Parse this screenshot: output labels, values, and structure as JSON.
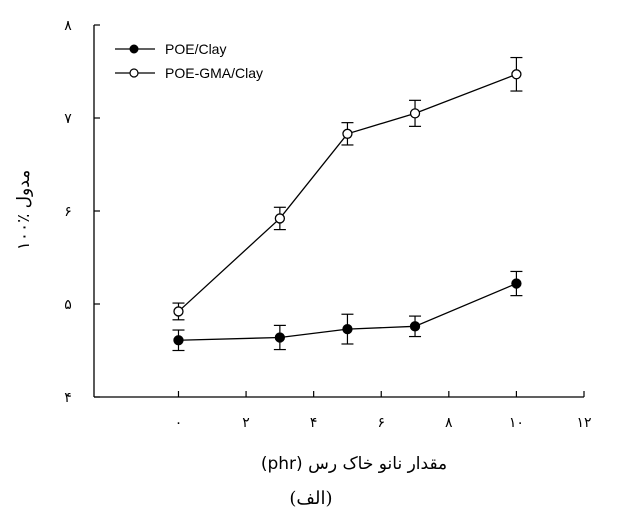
{
  "chart_data": {
    "type": "line",
    "x": [
      0,
      3,
      5,
      7,
      10
    ],
    "series": [
      {
        "name": "POE/Clay",
        "marker": "filled-circle",
        "values": [
          4.61,
          4.64,
          4.73,
          4.76,
          5.22
        ],
        "error": [
          0.11,
          0.13,
          0.16,
          0.11,
          0.13
        ]
      },
      {
        "name": "POE-GMA/Clay",
        "marker": "open-circle",
        "values": [
          4.92,
          5.92,
          6.83,
          7.05,
          7.47
        ],
        "error": [
          0.09,
          0.12,
          0.12,
          0.14,
          0.18
        ]
      }
    ],
    "xlabel": "مقدار نانو خاک رس (phr)",
    "ylabel": "مدول ٪۱۰۰",
    "xlim": [
      -2.5,
      12
    ],
    "ylim": [
      4,
      8
    ],
    "xticks": [
      0,
      2,
      4,
      6,
      8,
      10,
      12
    ],
    "xtick_labels": [
      "۰",
      "۲",
      "۴",
      "۶",
      "۸",
      "۱۰",
      "۱۲"
    ],
    "yticks": [
      4,
      5,
      6,
      7,
      8
    ],
    "ytick_labels": [
      "۴",
      "۵",
      "۶",
      "۷",
      "۸"
    ],
    "legend_position": "top-left",
    "grid": false
  },
  "caption": "(الف)",
  "colors": {
    "line": "#000000",
    "background": "#ffffff"
  }
}
